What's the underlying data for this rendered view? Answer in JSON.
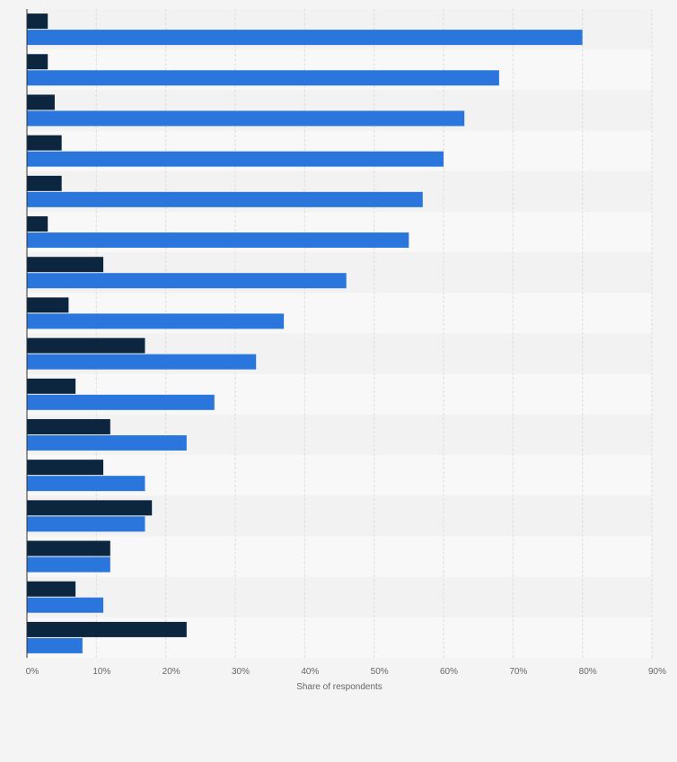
{
  "chart_data": {
    "type": "bar",
    "orientation": "horizontal",
    "title": "",
    "xlabel": "Share of respondents",
    "ylabel": "",
    "xlim": [
      0,
      90
    ],
    "x_ticks": [
      "0%",
      "10%",
      "20%",
      "30%",
      "40%",
      "50%",
      "60%",
      "70%",
      "80%",
      "90%"
    ],
    "categories": [
      "",
      "",
      "",
      "",
      "",
      "",
      "",
      "",
      "",
      "",
      "",
      "",
      "",
      "",
      "",
      ""
    ],
    "series": [
      {
        "values": [
          3,
          3,
          4,
          5,
          5,
          3,
          11,
          6,
          17,
          7,
          12,
          11,
          18,
          12,
          7,
          23
        ],
        "color": "#0d2640"
      },
      {
        "values": [
          80,
          68,
          63,
          60,
          57,
          55,
          46,
          37,
          33,
          27,
          23,
          17,
          17,
          12,
          11,
          8
        ],
        "color": "#2a76dd"
      }
    ],
    "grid": true,
    "legend": "none",
    "background_bands": [
      "#f2f2f2",
      "#f8f8f8"
    ]
  }
}
